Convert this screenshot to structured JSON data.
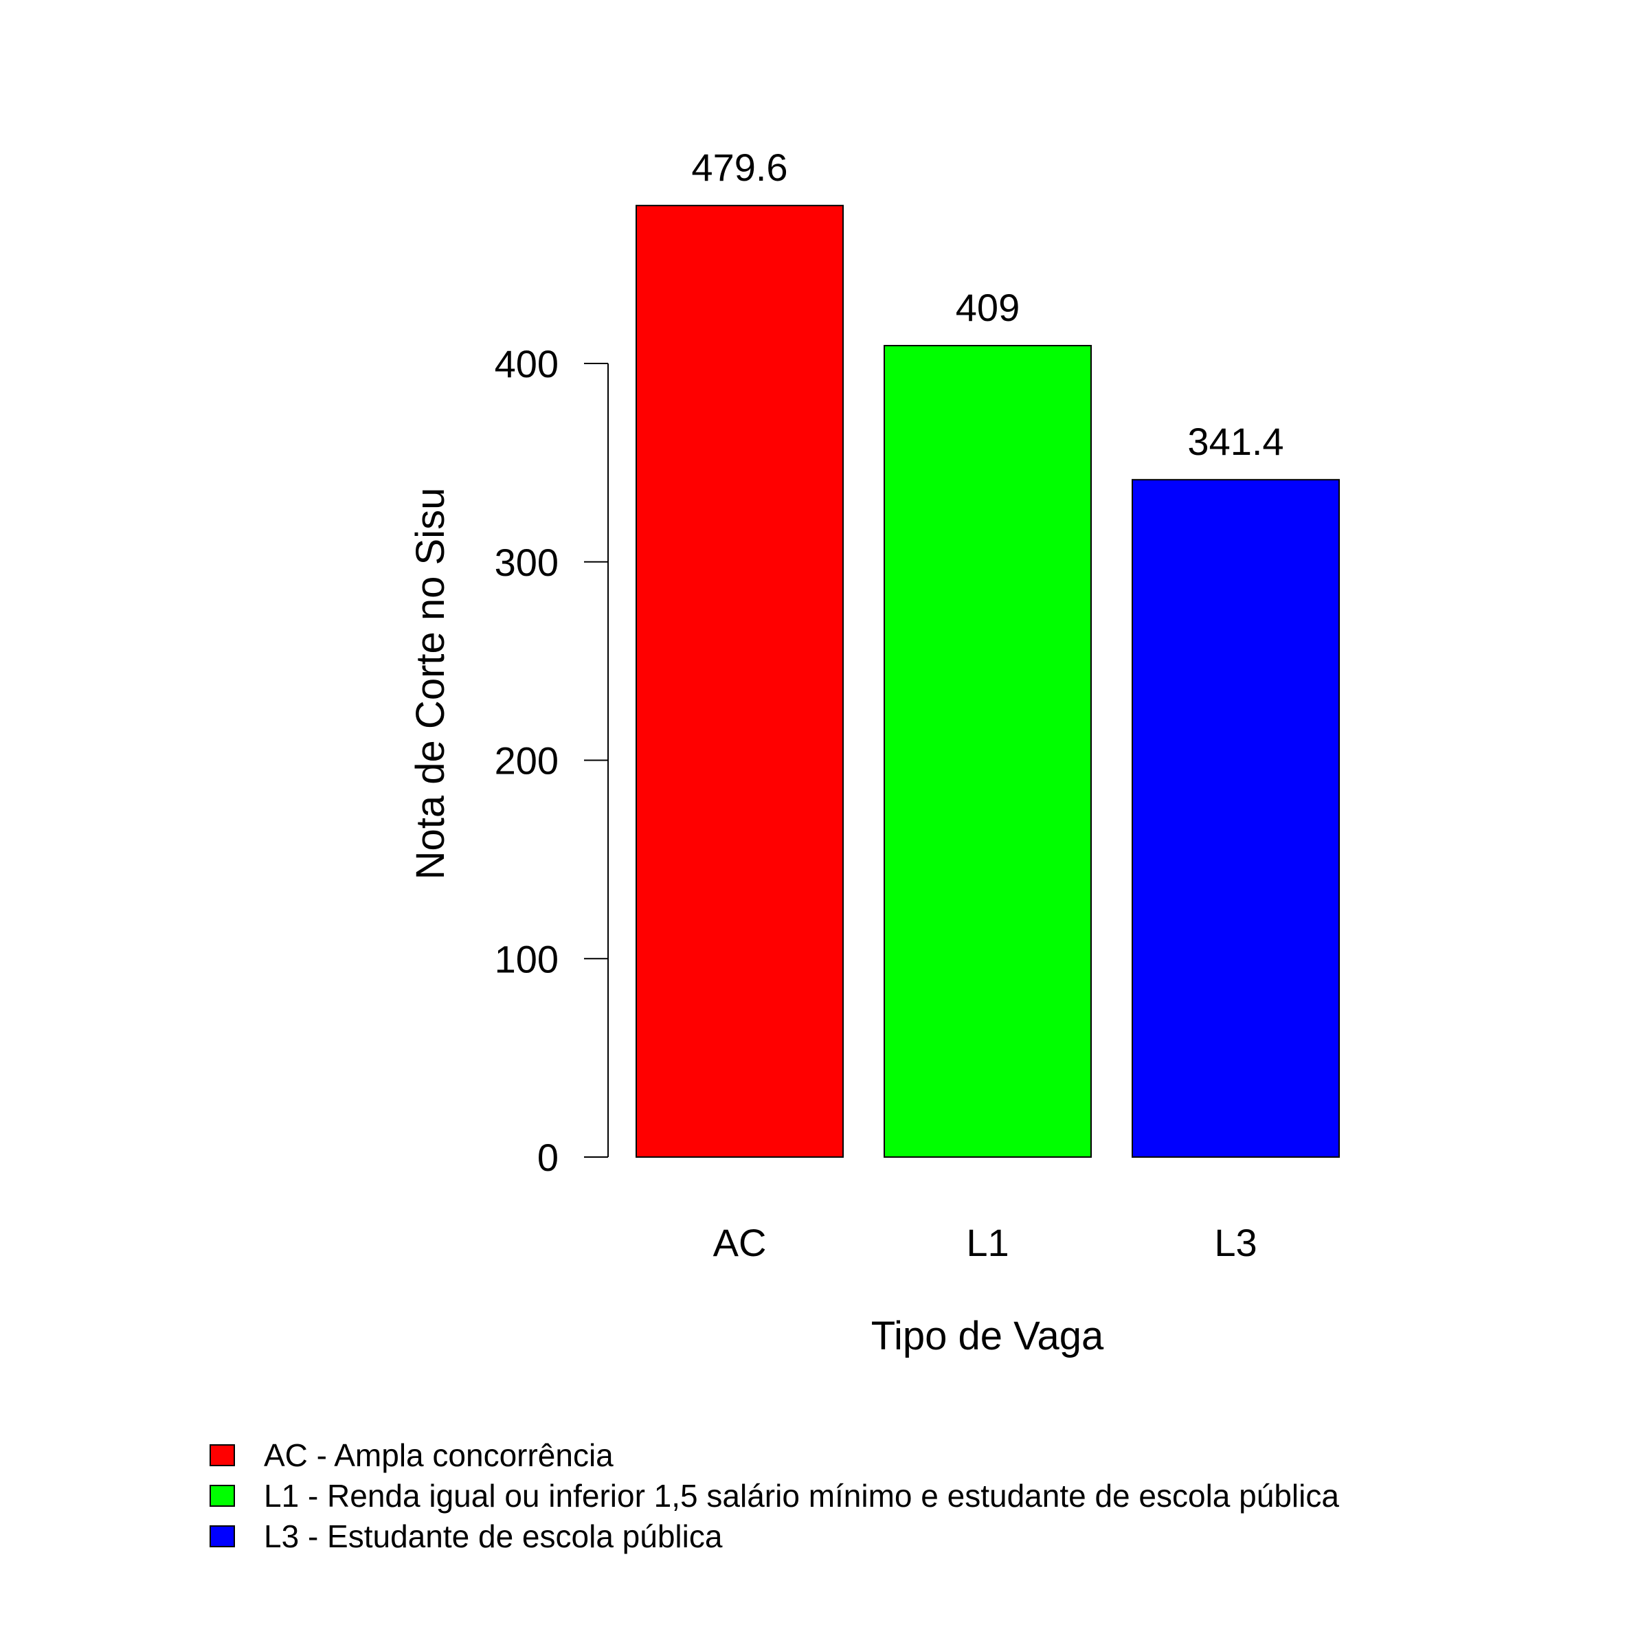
{
  "chart_data": {
    "type": "bar",
    "categories": [
      "AC",
      "L1",
      "L3"
    ],
    "values": [
      479.6,
      409,
      341.4
    ],
    "value_labels": [
      "479.6",
      "409",
      "341.4"
    ],
    "colors": [
      "#ff0000",
      "#00ff00",
      "#0000ff"
    ],
    "title": "",
    "xlabel": "Tipo de Vaga",
    "ylabel": "Nota de Corte no Sisu",
    "ylim": [
      0,
      400
    ],
    "yticks": [
      0,
      100,
      200,
      300,
      400
    ],
    "grid": false,
    "legend": {
      "placement": "bottom-left",
      "entries": [
        "AC - Ampla concorrência",
        "L1 - Renda igual ou inferior 1,5 salário mínimo e estudante de escola pública",
        "L3 - Estudante de escola pública"
      ]
    }
  }
}
